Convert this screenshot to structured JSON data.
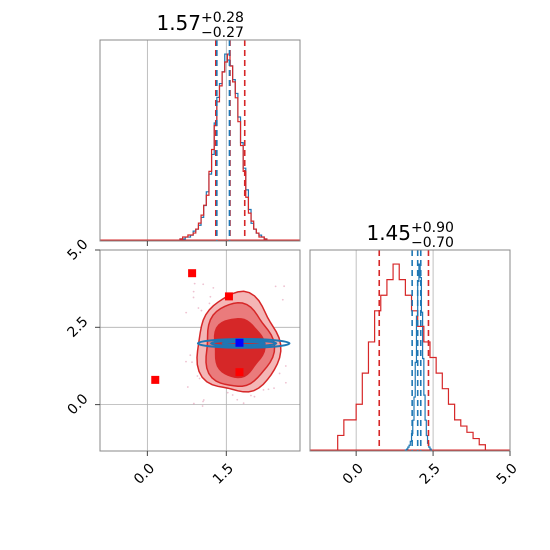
{
  "chart_data": [
    {
      "type": "histogram",
      "panel": "top-left",
      "title": {
        "median": "1.57",
        "plus": "+0.28",
        "minus": "−0.27"
      },
      "xlim": [
        -0.9,
        2.9
      ],
      "xticks": [
        0.0,
        1.5
      ],
      "yticks": [],
      "grid": true,
      "series": [
        {
          "name": "",
          "color": "#1f77b4",
          "bin_start": 0.62,
          "bin_width": 0.05,
          "counts": [
            0.01,
            0.01,
            0.02,
            0.02,
            0.03,
            0.05,
            0.06,
            0.08,
            0.12,
            0.18,
            0.25,
            0.34,
            0.44,
            0.6,
            0.73,
            0.8,
            0.86,
            0.95,
            0.92,
            0.89,
            0.82,
            0.75,
            0.63,
            0.5,
            0.37,
            0.26,
            0.16,
            0.09,
            0.06,
            0.04,
            0.03,
            0.02,
            0.01
          ]
        },
        {
          "name": "",
          "color": "#d62728",
          "bin_start": 0.62,
          "bin_width": 0.05,
          "counts": [
            0.01,
            0.02,
            0.02,
            0.03,
            0.03,
            0.04,
            0.06,
            0.09,
            0.13,
            0.18,
            0.23,
            0.35,
            0.46,
            0.58,
            0.7,
            0.78,
            0.85,
            0.9,
            0.94,
            0.88,
            0.8,
            0.72,
            0.6,
            0.48,
            0.35,
            0.22,
            0.14,
            0.1,
            0.06,
            0.04,
            0.02,
            0.02,
            0.01
          ]
        }
      ],
      "vlines": [
        {
          "x": 1.3,
          "color": "#d62728"
        },
        {
          "x": 1.57,
          "color": "#d62728"
        },
        {
          "x": 1.85,
          "color": "#d62728"
        },
        {
          "x": 1.32,
          "color": "#1f77b4"
        },
        {
          "x": 1.56,
          "color": "#1f77b4"
        }
      ]
    },
    {
      "type": "scatter-contour",
      "panel": "bottom-left",
      "xlim": [
        -0.9,
        2.9
      ],
      "ylim": [
        -1.5,
        5.0
      ],
      "xticks": [
        0.0,
        1.5
      ],
      "yticks": [
        0.0,
        2.5,
        5.0
      ],
      "xtick_labels": [
        "0.0",
        "1.5"
      ],
      "ytick_labels": [
        "0.0",
        "2.5",
        "5.0"
      ],
      "grid": true,
      "red_contours": [
        {
          "cx": 1.72,
          "cy": 1.95,
          "rx": 0.78,
          "ry": 1.6,
          "fill": "#f4b6b6",
          "stroke": "#d62728"
        },
        {
          "cx": 1.72,
          "cy": 1.9,
          "rx": 0.64,
          "ry": 1.35,
          "fill": "#ea7b7c",
          "stroke": "#d62728"
        },
        {
          "cx": 1.72,
          "cy": 1.85,
          "rx": 0.47,
          "ry": 0.95,
          "fill": "#d62728",
          "stroke": "#d62728"
        }
      ],
      "blue_contours": [
        {
          "cx": 1.83,
          "cy": 1.98,
          "rx": 0.87,
          "ry": 0.14
        },
        {
          "cx": 1.83,
          "cy": 1.98,
          "rx": 0.62,
          "ry": 0.09
        },
        {
          "cx": 1.83,
          "cy": 1.98,
          "rx": 0.4,
          "ry": 0.05
        }
      ],
      "red_markers": [
        {
          "x": 0.85,
          "y": 4.25
        },
        {
          "x": 1.55,
          "y": 3.5
        },
        {
          "x": 0.15,
          "y": 0.8
        },
        {
          "x": 1.75,
          "y": 1.05
        }
      ],
      "blue_marker": {
        "x": 1.75,
        "y": 2.0
      }
    },
    {
      "type": "histogram",
      "panel": "bottom-right",
      "title": {
        "median": "1.45",
        "plus": "+0.90",
        "minus": "−0.70"
      },
      "xlim": [
        -1.5,
        5.0
      ],
      "xticks": [
        0.0,
        2.5,
        5.0
      ],
      "xtick_labels": [
        "0.0",
        "2.5",
        "5.0"
      ],
      "grid": true,
      "series": [
        {
          "name": "",
          "color": "#1f77b4",
          "bin_start": 1.6,
          "bin_width": 0.04,
          "counts": [
            0.005,
            0.01,
            0.02,
            0.03,
            0.05,
            0.09,
            0.16,
            0.28,
            0.46,
            0.7,
            0.88,
            0.97,
            0.9,
            0.72,
            0.48,
            0.29,
            0.16,
            0.08,
            0.04,
            0.02,
            0.01
          ]
        },
        {
          "name": "",
          "color": "#d62728",
          "bin_start": -0.6,
          "bin_width": 0.2,
          "counts": [
            0.005,
            0.01,
            0.01,
            0.015,
            0.025,
            0.035,
            0.045,
            0.05,
            0.055,
            0.06,
            0.055,
            0.05,
            0.045,
            0.04,
            0.035,
            0.03,
            0.025,
            0.02,
            0.015,
            0.01,
            0.008,
            0.006,
            0.004,
            0.002
          ]
        }
      ],
      "vlines": [
        {
          "x": 0.75,
          "color": "#d62728"
        },
        {
          "x": 1.82,
          "color": "#1f77b4"
        },
        {
          "x": 2.0,
          "color": "#1f77b4"
        },
        {
          "x": 2.1,
          "color": "#1f77b4"
        },
        {
          "x": 2.35,
          "color": "#d62728"
        }
      ]
    }
  ]
}
